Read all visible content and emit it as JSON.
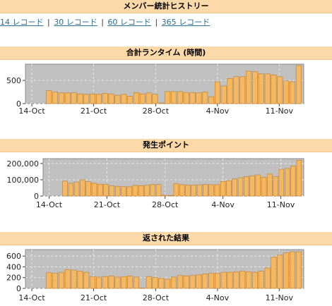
{
  "header": {
    "title": "メンバー統計ヒストリー"
  },
  "record_links": [
    {
      "label": "14 レコード"
    },
    {
      "label": "30 レコード"
    },
    {
      "label": "60 レコード"
    },
    {
      "label": "365 レコード"
    }
  ],
  "link_separator": "|",
  "colors": {
    "bar_fill": "#f5b860",
    "bar_edge": "#c07a20",
    "plot_bg": "#c0c0c0",
    "header_bg": "#fcd9a8"
  },
  "chart_data": [
    {
      "type": "bar",
      "title": "合計ランタイム (時間)",
      "y_ticks": [
        0,
        500
      ],
      "ylim": [
        0,
        850
      ],
      "x_ticks": [
        "14-Oct",
        "21-Oct",
        "28-Oct",
        "4-Nov",
        "11-Nov"
      ],
      "values": [
        280,
        250,
        230,
        230,
        235,
        210,
        200,
        210,
        200,
        220,
        210,
        180,
        200,
        160,
        240,
        210,
        230,
        200,
        15,
        260,
        260,
        260,
        240,
        240,
        230,
        250,
        150,
        470,
        380,
        540,
        580,
        580,
        700,
        690,
        640,
        640,
        620,
        580,
        490,
        470,
        820
      ]
    },
    {
      "type": "bar",
      "title": "発生ポイント",
      "y_ticks": [
        0,
        100000,
        200000
      ],
      "y_tick_labels": [
        "0",
        "100,000",
        "200,000"
      ],
      "ylim": [
        0,
        230000
      ],
      "x_ticks": [
        "14-Oct",
        "21-Oct",
        "28-Oct",
        "4-Nov",
        "11-Nov"
      ],
      "values": [
        92000,
        78000,
        86000,
        100000,
        88000,
        78000,
        73000,
        72000,
        63000,
        60000,
        58000,
        57000,
        65000,
        64000,
        66000,
        72000,
        71000,
        5000,
        3000,
        76000,
        70000,
        68000,
        67000,
        69000,
        71000,
        70000,
        70000,
        90000,
        95000,
        105000,
        113000,
        120000,
        125000,
        130000,
        115000,
        135000,
        120000,
        165000,
        170000,
        185000,
        220000
      ]
    },
    {
      "type": "bar",
      "title": "返された結果",
      "y_ticks": [
        0,
        200,
        400,
        600
      ],
      "ylim": [
        0,
        720
      ],
      "x_ticks": [
        "14-Oct",
        "21-Oct",
        "28-Oct",
        "4-Nov",
        "11-Nov"
      ],
      "values": [
        290,
        280,
        300,
        350,
        340,
        320,
        300,
        220,
        210,
        220,
        230,
        210,
        220,
        230,
        210,
        5,
        220,
        200,
        190,
        170,
        210,
        240,
        230,
        240,
        250,
        270,
        280,
        280,
        300,
        300,
        310,
        320,
        310,
        300,
        320,
        380,
        580,
        620,
        660,
        680,
        680
      ]
    }
  ]
}
